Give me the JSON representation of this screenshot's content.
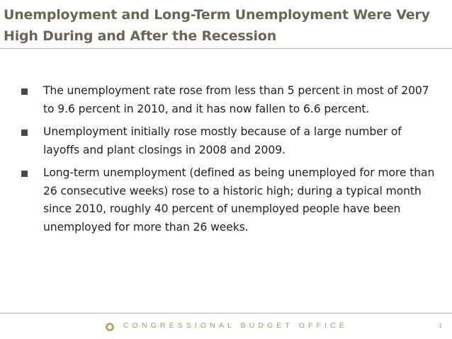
{
  "slide": {
    "title": "Unemployment and Long-Term Unemployment Were Very High During and After the Recession",
    "bullets": [
      "The unemployment rate rose from less than 5 percent in most of 2007 to 9.6 percent in 2010, and it has now fallen to 6.6 percent.",
      "Unemployment initially rose mostly because of a large number of layoffs and plant closings in 2008 and 2009.",
      "Long-term unemployment (defined as being unemployed for more than 26 consecutive weeks) rose to a historic high; during a typical month since 2010, roughly 40 percent of unemployed people have been unemployed for more than 26 weeks."
    ]
  },
  "footer": {
    "logo_icon": "cbo-seal-icon",
    "agency": "CONGRESSIONAL BUDGET OFFICE",
    "page_number": "1"
  },
  "colors": {
    "title": "#6b6457",
    "accent": "#a89770",
    "body_text": "#1f1f1f",
    "rule": "#bfb7a5"
  }
}
